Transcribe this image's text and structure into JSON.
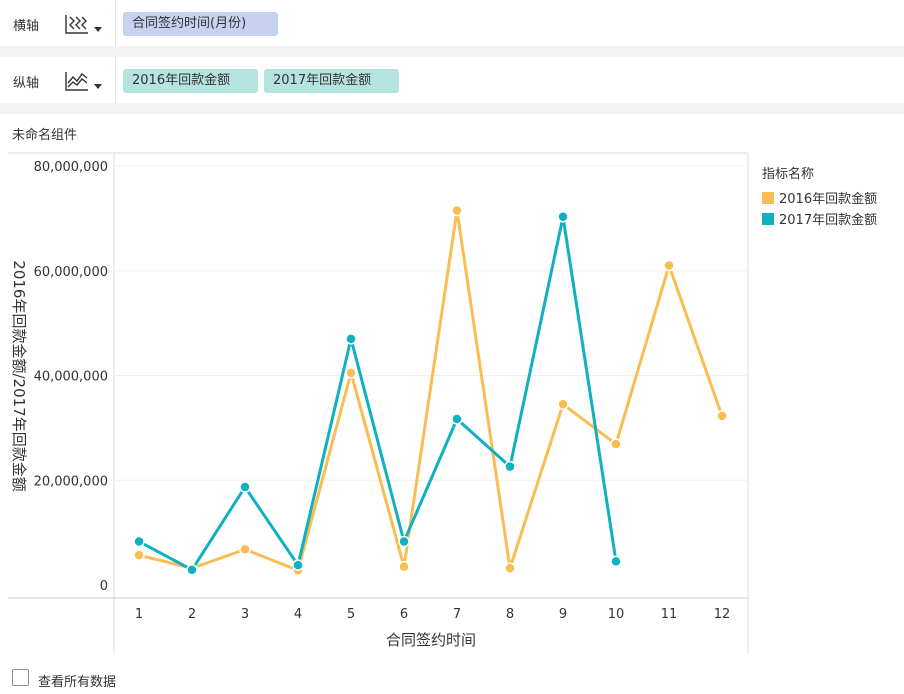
{
  "shelves": {
    "x_axis": {
      "label": "横轴",
      "icon": "dimension-chart-icon",
      "fields": [
        "合同签约时间(月份)"
      ]
    },
    "y_axis": {
      "label": "纵轴",
      "icon": "line-chart-icon",
      "fields": [
        "2016年回款金额",
        "2017年回款金额"
      ]
    }
  },
  "widget": {
    "title": "未命名组件"
  },
  "footer": {
    "checkbox_label": "查看所有数据",
    "checked": false
  },
  "chart_data": {
    "type": "line",
    "x": [
      1,
      2,
      3,
      4,
      5,
      6,
      7,
      8,
      9,
      10,
      11,
      12
    ],
    "x_tick_labels": [
      "1",
      "2",
      "3",
      "4",
      "5",
      "6",
      "7",
      "8",
      "9",
      "10",
      "11",
      "12"
    ],
    "xlabel": "合同签约时间",
    "ylabel": "2016年回款金额/2017年回款金额",
    "ylim": [
      0,
      80000000
    ],
    "y_ticks": [
      0,
      20000000,
      40000000,
      60000000,
      80000000
    ],
    "y_tick_labels": [
      "0",
      "20,000,000",
      "40,000,000",
      "60,000,000",
      "80,000,000"
    ],
    "grid": true,
    "legend": {
      "title": "指标名称",
      "position": "right"
    },
    "series": [
      {
        "name": "2016年回款金额",
        "color": "#f9bd52",
        "values": [
          5700000,
          3200000,
          6800000,
          2800000,
          40500000,
          3500000,
          71500000,
          3200000,
          34500000,
          26900000,
          61000000,
          32300000
        ]
      },
      {
        "name": "2017年回款金额",
        "color": "#0fb0c0",
        "values": [
          8300000,
          2900000,
          18700000,
          3800000,
          47000000,
          8300000,
          31700000,
          22600000,
          70300000,
          4500000,
          null,
          null
        ]
      }
    ]
  }
}
